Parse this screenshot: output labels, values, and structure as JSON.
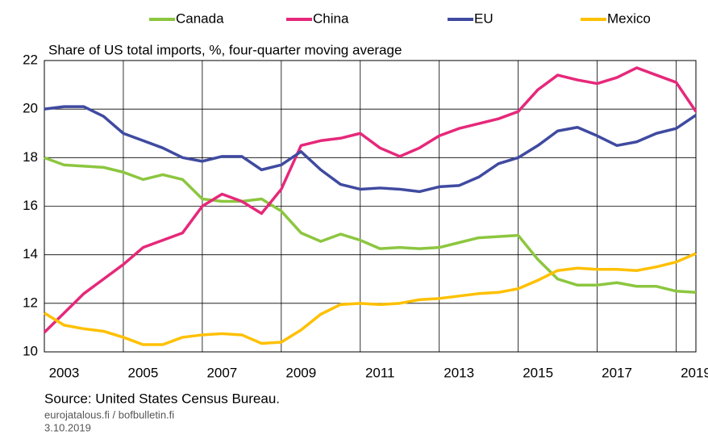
{
  "chart_data": {
    "type": "line",
    "subtitle": "Share of US total imports, %, four-quarter moving average",
    "source": "Source: United States Census Bureau.",
    "site": "eurojatalous.fi / bofbulletin.fi",
    "date": "3.10.2019",
    "x": [
      2003,
      2003.5,
      2004,
      2004.5,
      2005,
      2005.5,
      2006,
      2006.5,
      2007,
      2007.5,
      2008,
      2008.5,
      2009,
      2009.5,
      2010,
      2010.5,
      2011,
      2011.5,
      2012,
      2012.5,
      2013,
      2013.5,
      2014,
      2014.5,
      2015,
      2015.5,
      2016,
      2016.5,
      2017,
      2017.5,
      2018,
      2018.5,
      2019,
      2019.5
    ],
    "series": [
      {
        "name": "Canada",
        "color": "#8cc63f",
        "values": [
          18.0,
          17.7,
          17.65,
          17.6,
          17.4,
          17.1,
          17.3,
          17.1,
          16.3,
          16.2,
          16.2,
          16.3,
          15.8,
          14.9,
          14.55,
          14.85,
          14.6,
          14.25,
          14.3,
          14.25,
          14.3,
          14.5,
          14.7,
          14.75,
          14.8,
          13.8,
          13.0,
          12.75,
          12.75,
          12.85,
          12.7,
          12.7,
          12.5,
          12.45
        ]
      },
      {
        "name": "China",
        "color": "#e6287a",
        "values": [
          10.8,
          11.6,
          12.4,
          13.0,
          13.6,
          14.3,
          14.6,
          14.9,
          16.0,
          16.5,
          16.2,
          15.7,
          16.7,
          18.5,
          18.7,
          18.8,
          19.0,
          18.4,
          18.05,
          18.4,
          18.9,
          19.2,
          19.4,
          19.6,
          19.9,
          20.8,
          21.4,
          21.2,
          21.05,
          21.3,
          21.7,
          21.4,
          21.1,
          19.9
        ]
      },
      {
        "name": "EU",
        "color": "#3f4aa0",
        "values": [
          20.0,
          20.1,
          20.1,
          19.7,
          19.0,
          18.7,
          18.4,
          18.0,
          17.85,
          18.05,
          18.05,
          17.5,
          17.7,
          18.25,
          17.5,
          16.9,
          16.7,
          16.75,
          16.7,
          16.6,
          16.8,
          16.85,
          17.2,
          17.75,
          18.0,
          18.5,
          19.1,
          19.25,
          18.9,
          18.5,
          18.65,
          19.0,
          19.2,
          19.75
        ]
      },
      {
        "name": "Mexico",
        "color": "#ffc000",
        "values": [
          11.6,
          11.1,
          10.95,
          10.85,
          10.6,
          10.3,
          10.3,
          10.6,
          10.7,
          10.75,
          10.7,
          10.35,
          10.4,
          10.9,
          11.55,
          11.95,
          12.0,
          11.95,
          12.0,
          12.15,
          12.2,
          12.3,
          12.4,
          12.45,
          12.6,
          12.95,
          13.35,
          13.45,
          13.4,
          13.4,
          13.35,
          13.5,
          13.7,
          14.05
        ]
      }
    ],
    "xlim": [
      2003,
      2019.5
    ],
    "xticks": [
      {
        "value": 2003.5,
        "label": "2003"
      },
      {
        "value": 2005.5,
        "label": "2005"
      },
      {
        "value": 2007.5,
        "label": "2007"
      },
      {
        "value": 2009.5,
        "label": "2009"
      },
      {
        "value": 2011.5,
        "label": "2011"
      },
      {
        "value": 2013.5,
        "label": "2013"
      },
      {
        "value": 2015.5,
        "label": "2015"
      },
      {
        "value": 2017.5,
        "label": "2017"
      },
      {
        "value": 2019.5,
        "label": "2019"
      }
    ],
    "xgrid": [
      2005,
      2007,
      2009,
      2011,
      2013,
      2015,
      2017,
      2019
    ],
    "ylim": [
      10,
      22
    ],
    "yticks": [
      10,
      12,
      14,
      16,
      18,
      20,
      22
    ],
    "grid": true
  }
}
